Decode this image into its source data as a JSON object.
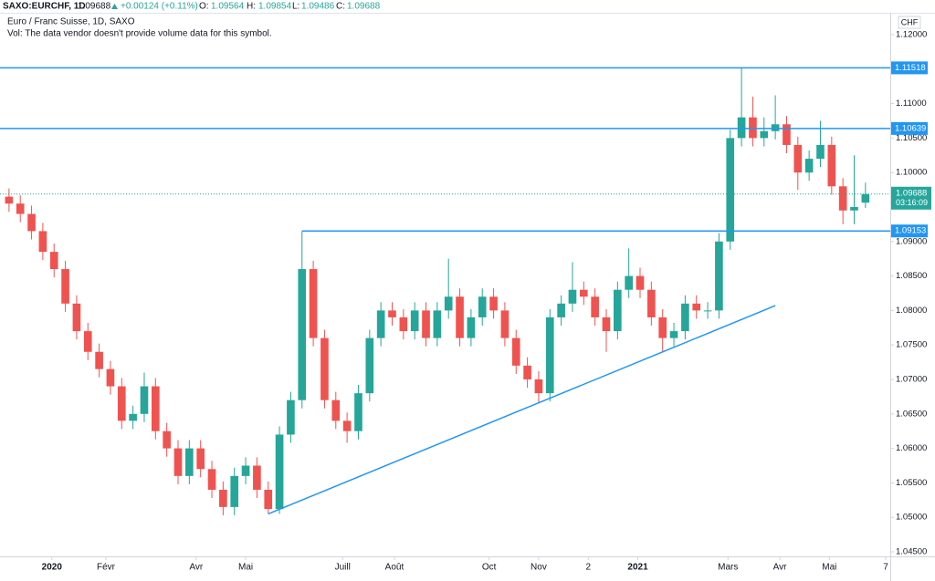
{
  "header": {
    "symbol": "SAXO:EURCHF, 1D",
    "change": "+0.00124 (+0.11%)",
    "o": "O:",
    "h": "H:",
    "l": "L:",
    "c": "C:"
  },
  "legend": {
    "name": "Euro / Franc Suisse, 1D, SAXO",
    "volume_note": "Vol: The data vendor doesn't provide volume data for this symbol."
  },
  "chart_data": {
    "type": "candlestick",
    "currency": "CHF",
    "countdown": "03:16:09",
    "up_color": "#26a69a",
    "down_color": "#ef5350",
    "line_color": "#2196f3",
    "grid": false,
    "x": [
      -19,
      -14,
      -9,
      -4,
      1,
      6,
      11,
      16,
      21,
      26,
      31,
      36,
      41,
      46,
      51,
      56,
      61,
      66,
      71,
      76,
      81,
      86,
      91,
      96,
      101,
      106,
      111,
      116,
      121,
      126,
      131,
      136,
      141,
      146,
      151,
      156,
      161,
      166,
      171,
      176,
      181,
      186,
      191,
      196,
      201,
      206,
      211,
      216,
      221,
      226,
      231,
      236,
      241,
      246,
      251,
      256,
      261,
      266,
      271,
      276,
      281,
      286,
      291,
      296,
      301,
      306,
      311,
      316,
      321,
      326,
      331,
      336,
      341,
      346,
      351,
      356,
      361
    ],
    "open": [
      1.0965,
      1.0955,
      1.094,
      1.0915,
      1.0885,
      1.086,
      1.081,
      1.077,
      1.074,
      1.0715,
      1.069,
      1.064,
      1.065,
      1.069,
      1.0625,
      1.06,
      1.056,
      1.06,
      1.057,
      1.054,
      1.0515,
      1.056,
      1.0575,
      1.054,
      1.0512,
      1.062,
      1.067,
      1.086,
      1.076,
      1.067,
      1.064,
      1.0625,
      1.068,
      1.076,
      1.08,
      1.079,
      1.077,
      1.08,
      1.076,
      1.08,
      1.082,
      1.076,
      1.079,
      1.082,
      1.08,
      1.076,
      1.072,
      1.07,
      1.068,
      1.079,
      1.081,
      1.083,
      1.082,
      1.079,
      1.077,
      1.083,
      1.085,
      1.083,
      1.079,
      1.076,
      1.077,
      1.081,
      1.08,
      1.08,
      1.09,
      1.105,
      1.108,
      1.105,
      1.106,
      1.107,
      1.104,
      1.1,
      1.102,
      1.104,
      1.098,
      1.0945,
      1.09564
    ],
    "high": [
      1.0977,
      1.0967,
      1.0952,
      1.0927,
      1.0897,
      1.0872,
      1.0822,
      1.0782,
      1.0752,
      1.0727,
      1.0702,
      1.0662,
      1.071,
      1.0702,
      1.0637,
      1.0612,
      1.0612,
      1.0612,
      1.0582,
      1.0552,
      1.0572,
      1.0587,
      1.0587,
      1.0552,
      1.0632,
      1.0682,
      1.0915,
      1.0872,
      1.0772,
      1.0682,
      1.0652,
      1.0692,
      1.0772,
      1.0812,
      1.0812,
      1.0802,
      1.0812,
      1.0812,
      1.0812,
      1.0875,
      1.0832,
      1.0802,
      1.0832,
      1.0832,
      1.0812,
      1.0772,
      1.0732,
      1.0712,
      1.0802,
      1.0822,
      1.087,
      1.0842,
      1.0832,
      1.0802,
      1.0842,
      1.089,
      1.0862,
      1.0842,
      1.0802,
      1.0782,
      1.0822,
      1.0822,
      1.0812,
      1.0912,
      1.1062,
      1.11518,
      1.111,
      1.108,
      1.1112,
      1.1082,
      1.1052,
      1.1032,
      1.1075,
      1.1052,
      1.0992,
      1.1025,
      1.09854
    ],
    "low": [
      1.0943,
      1.0928,
      1.0903,
      1.0873,
      1.0848,
      1.0798,
      1.0758,
      1.0728,
      1.0703,
      1.0678,
      1.0628,
      1.0628,
      1.0638,
      1.0613,
      1.0588,
      1.0548,
      1.0548,
      1.0558,
      1.0528,
      1.0503,
      1.0503,
      1.0548,
      1.0528,
      1.0505,
      1.0505,
      1.0608,
      1.0658,
      1.0748,
      1.0658,
      1.0628,
      1.0608,
      1.0613,
      1.0668,
      1.0748,
      1.0778,
      1.0758,
      1.0758,
      1.0748,
      1.0748,
      1.0788,
      1.0748,
      1.0748,
      1.0778,
      1.0788,
      1.0748,
      1.0708,
      1.0688,
      1.0665,
      1.0668,
      1.0778,
      1.0798,
      1.0808,
      1.0778,
      1.074,
      1.0758,
      1.0818,
      1.0818,
      1.0778,
      1.074,
      1.0748,
      1.0758,
      1.0788,
      1.0788,
      1.0788,
      1.0888,
      1.1038,
      1.1038,
      1.1038,
      1.1048,
      1.1028,
      1.0975,
      1.0988,
      1.1008,
      1.0968,
      1.0925,
      1.0925,
      1.09486
    ],
    "close": [
      1.0955,
      1.094,
      1.0915,
      1.0885,
      1.086,
      1.081,
      1.077,
      1.074,
      1.0715,
      1.069,
      1.064,
      1.065,
      1.069,
      1.0625,
      1.06,
      1.056,
      1.06,
      1.057,
      1.054,
      1.0515,
      1.056,
      1.0575,
      1.054,
      1.0512,
      1.062,
      1.067,
      1.086,
      1.076,
      1.067,
      1.064,
      1.0625,
      1.068,
      1.076,
      1.08,
      1.079,
      1.077,
      1.08,
      1.076,
      1.08,
      1.082,
      1.076,
      1.079,
      1.082,
      1.08,
      1.076,
      1.072,
      1.07,
      1.068,
      1.079,
      1.081,
      1.083,
      1.082,
      1.079,
      1.077,
      1.083,
      1.085,
      1.083,
      1.079,
      1.076,
      1.077,
      1.081,
      1.08,
      1.08,
      1.09,
      1.105,
      1.108,
      1.105,
      1.106,
      1.107,
      1.104,
      1.1,
      1.102,
      1.104,
      1.098,
      1.0945,
      1.095,
      1.09688
    ],
    "hlines": [
      {
        "value": 1.11518,
        "from_x": -23
      },
      {
        "value": 1.10639,
        "from_x": -23
      },
      {
        "value": 1.09153,
        "from_x": 111
      }
    ],
    "trendline": {
      "x": [
        96,
        321
      ],
      "y": [
        1.0505,
        1.0807
      ]
    },
    "xlim": [
      -23,
      372
    ],
    "xticks": [
      {
        "value": 0,
        "label": "2020"
      },
      {
        "value": 24,
        "label": "Févr"
      },
      {
        "value": 64,
        "label": "Avr"
      },
      {
        "value": 86,
        "label": "Mai"
      },
      {
        "value": 129,
        "label": "Juill"
      },
      {
        "value": 152,
        "label": "Août"
      },
      {
        "value": 194,
        "label": "Oct"
      },
      {
        "value": 216,
        "label": "Nov"
      },
      {
        "value": 238,
        "label": "2"
      },
      {
        "value": 260,
        "label": "2021"
      },
      {
        "value": 300,
        "label": "Mars"
      },
      {
        "value": 323,
        "label": "Avr"
      },
      {
        "value": 345,
        "label": "Mai"
      },
      {
        "value": 370,
        "label": "7"
      }
    ],
    "ylim": [
      1.04434,
      1.12317
    ],
    "yticks": [
      {
        "value": 1.12,
        "label": "1.12000"
      },
      {
        "value": 1.115,
        "label": "1.11500"
      },
      {
        "value": 1.11,
        "label": "1.11000"
      },
      {
        "value": 1.105,
        "label": "1.10500"
      },
      {
        "value": 1.1,
        "label": "1.10000"
      },
      {
        "value": 1.095,
        "label": "1.09500"
      },
      {
        "value": 1.09,
        "label": "1.09000"
      },
      {
        "value": 1.085,
        "label": "1.08500"
      },
      {
        "value": 1.08,
        "label": "1.08000"
      },
      {
        "value": 1.075,
        "label": "1.07500"
      },
      {
        "value": 1.07,
        "label": "1.07000"
      },
      {
        "value": 1.065,
        "label": "1.06500"
      },
      {
        "value": 1.06,
        "label": "1.06000"
      },
      {
        "value": 1.055,
        "label": "1.05500"
      },
      {
        "value": 1.05,
        "label": "1.05000"
      },
      {
        "value": 1.045,
        "label": "1.04500"
      }
    ]
  }
}
